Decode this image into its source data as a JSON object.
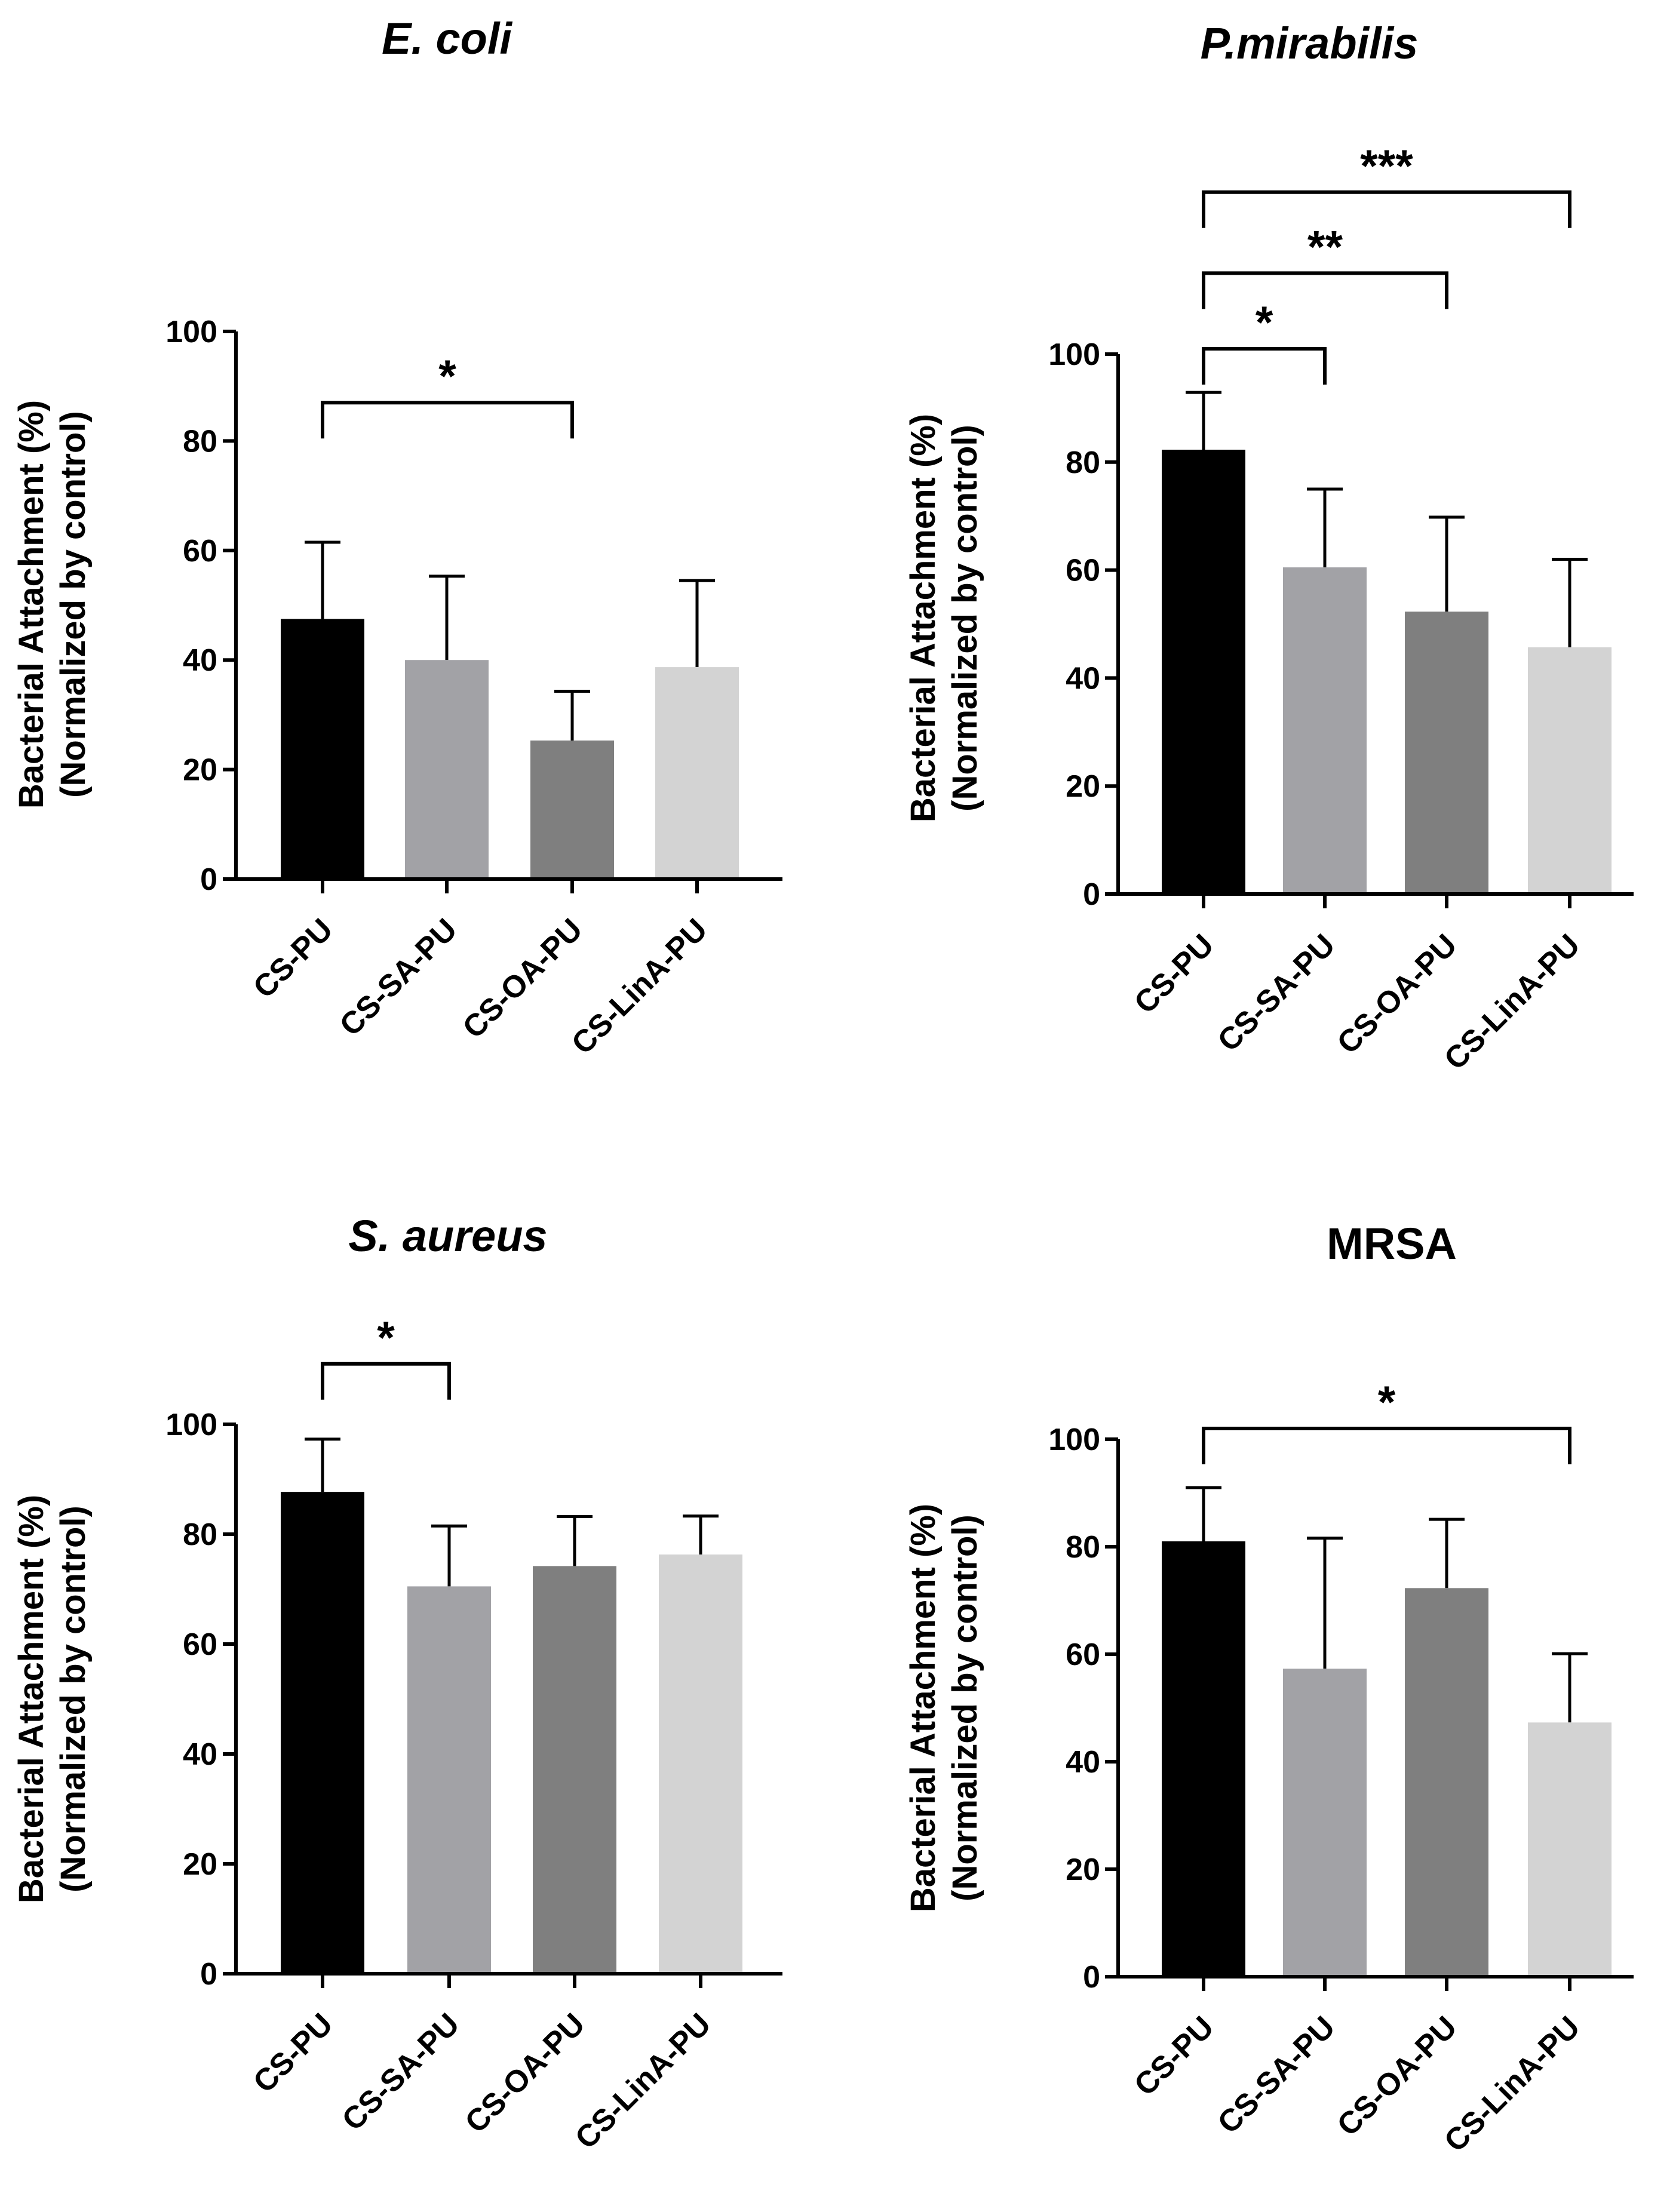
{
  "figure": {
    "panels": 4
  },
  "chart_data": [
    {
      "type": "bar",
      "title": "E. coli",
      "title_italic": true,
      "categories": [
        "CS-PU",
        "CS-SA-PU",
        "CS-OA-PU",
        "CS-LinA-PU"
      ],
      "values": [
        47.5,
        40,
        25.3,
        38.7
      ],
      "errors": [
        14,
        15.3,
        9,
        15.8
      ],
      "colors": [
        "#000000",
        "#a2a2a6",
        "#7f7f7f",
        "#d3d3d3"
      ],
      "ylabel_line1": "Bacterial Attachment (%)",
      "ylabel_line2": "(Normalized by control)",
      "ylim": [
        0,
        100
      ],
      "yticks": [
        "0",
        "20",
        "40",
        "60",
        "80",
        "100"
      ],
      "significance": [
        {
          "from": 0,
          "to": 2,
          "label": "*",
          "level": 87
        }
      ]
    },
    {
      "type": "bar",
      "title": "P.mirabilis",
      "title_italic": true,
      "categories": [
        "CS-PU",
        "CS-SA-PU",
        "CS-OA-PU",
        "CS-LinA-PU"
      ],
      "values": [
        82.3,
        60.5,
        52.3,
        45.7
      ],
      "errors": [
        10.6,
        14.5,
        17.5,
        16.3
      ],
      "colors": [
        "#000000",
        "#a2a2a6",
        "#7f7f7f",
        "#d3d3d3"
      ],
      "ylabel_line1": "Bacterial Attachment (%)",
      "ylabel_line2": "(Normalized by control)",
      "ylim": [
        0,
        100
      ],
      "yticks": [
        "0",
        "20",
        "40",
        "60",
        "80",
        "100"
      ],
      "significance": [
        {
          "from": 0,
          "to": 1,
          "label": "*",
          "level": 101
        },
        {
          "from": 0,
          "to": 2,
          "label": "**",
          "level": 115
        },
        {
          "from": 0,
          "to": 3,
          "label": "***",
          "level": 130
        }
      ]
    },
    {
      "type": "bar",
      "title": "S. aureus",
      "title_italic": true,
      "categories": [
        "CS-PU",
        "CS-SA-PU",
        "CS-OA-PU",
        "CS-LinA-PU"
      ],
      "values": [
        87.7,
        70.5,
        74.2,
        76.3
      ],
      "errors": [
        9.6,
        11,
        9,
        7
      ],
      "colors": [
        "#000000",
        "#a2a2a6",
        "#7f7f7f",
        "#d3d3d3"
      ],
      "ylabel_line1": "Bacterial Attachment (%)",
      "ylabel_line2": "(Normalized by control)",
      "ylim": [
        0,
        100
      ],
      "yticks": [
        "0",
        "20",
        "40",
        "60",
        "80",
        "100"
      ],
      "significance": [
        {
          "from": 0,
          "to": 1,
          "label": "*",
          "level": 111
        }
      ]
    },
    {
      "type": "bar",
      "title": "MRSA",
      "title_italic": false,
      "categories": [
        "CS-PU",
        "CS-SA-PU",
        "CS-OA-PU",
        "CS-LinA-PU"
      ],
      "values": [
        81,
        57.3,
        72.3,
        47.3
      ],
      "errors": [
        10,
        24.3,
        12.8,
        12.8
      ],
      "colors": [
        "#000000",
        "#a2a2a6",
        "#7f7f7f",
        "#d3d3d3"
      ],
      "ylabel_line1": "Bacterial Attachment (%)",
      "ylabel_line2": "(Normalized by control)",
      "ylim": [
        0,
        100
      ],
      "yticks": [
        "0",
        "20",
        "40",
        "60",
        "80",
        "100"
      ],
      "significance": [
        {
          "from": 0,
          "to": 3,
          "label": "*",
          "level": 102
        }
      ]
    }
  ]
}
